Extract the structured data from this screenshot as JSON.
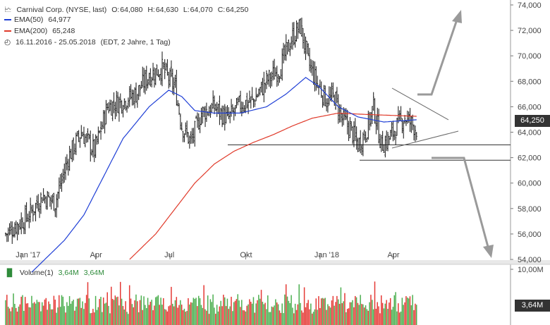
{
  "header": {
    "icon": "candlestick-chart-icon",
    "instrument": "Carnival Corp. (NYSE, last)",
    "open_label": "O:",
    "open": "64,080",
    "high_label": "H:",
    "high": "64,630",
    "low_label": "L:",
    "low": "64,070",
    "close_label": "C:",
    "close": "64,250",
    "ema50_label": "EMA(50)",
    "ema50_value": "64,977",
    "ema50_color": "#1f3fd6",
    "ema200_label": "EMA(200)",
    "ema200_value": "65,248",
    "ema200_color": "#e03a2a",
    "range_icon": "clock-icon",
    "range": "16.11.2016 - 25.05.2018",
    "range_detail": "(EDT, 2 Jahre, 1 Tag)"
  },
  "volume_header": {
    "icon": "bar-chart-icon",
    "label": "Volume(1)",
    "value1": "3,64M",
    "value2": "3,64M",
    "color": "#2e8b3a"
  },
  "chart_data": {
    "type": "candlestick",
    "x_tick_labels": [
      "Jan '17",
      "Apr",
      "Jul",
      "Okt",
      "Jan '18",
      "Apr"
    ],
    "y_tick_labels": [
      "74,000",
      "72,000",
      "70,000",
      "68,000",
      "66,000",
      "64,000",
      "62,000",
      "60,000",
      "58,000",
      "56,000",
      "54,000"
    ],
    "ylim": [
      54,
      74
    ],
    "last_value_label": "64,250",
    "last_value": 64.25,
    "price_keypoints": [
      [
        0,
        56.0
      ],
      [
        18,
        57.5
      ],
      [
        28,
        59.0
      ],
      [
        38,
        58.5
      ],
      [
        48,
        62.0
      ],
      [
        58,
        64.0
      ],
      [
        68,
        62.5
      ],
      [
        78,
        66.0
      ],
      [
        90,
        66.5
      ],
      [
        100,
        67.0
      ],
      [
        110,
        68.5
      ],
      [
        120,
        69.0
      ],
      [
        130,
        67.5
      ],
      [
        135,
        64.5
      ],
      [
        142,
        63.2
      ],
      [
        150,
        65.5
      ],
      [
        160,
        66.0
      ],
      [
        170,
        65.0
      ],
      [
        180,
        66.2
      ],
      [
        190,
        66.5
      ],
      [
        200,
        68.0
      ],
      [
        210,
        69.0
      ],
      [
        220,
        71.5
      ],
      [
        226,
        72.3
      ],
      [
        232,
        69.5
      ],
      [
        238,
        68.0
      ],
      [
        246,
        66.5
      ],
      [
        252,
        66.8
      ],
      [
        258,
        65.0
      ],
      [
        264,
        64.3
      ],
      [
        270,
        63.0
      ],
      [
        276,
        64.0
      ],
      [
        282,
        66.0
      ],
      [
        288,
        63.0
      ],
      [
        294,
        63.5
      ],
      [
        300,
        64.5
      ],
      [
        306,
        65.2
      ],
      [
        312,
        64.6
      ],
      [
        315,
        64.25
      ]
    ],
    "ema50_keypoints": [
      [
        20,
        53.0
      ],
      [
        45,
        55.5
      ],
      [
        60,
        57.5
      ],
      [
        75,
        60.5
      ],
      [
        90,
        63.5
      ],
      [
        110,
        66.0
      ],
      [
        125,
        67.3
      ],
      [
        135,
        66.8
      ],
      [
        145,
        65.7
      ],
      [
        160,
        65.5
      ],
      [
        180,
        65.5
      ],
      [
        200,
        66.0
      ],
      [
        215,
        67.0
      ],
      [
        230,
        68.3
      ],
      [
        240,
        67.6
      ],
      [
        255,
        66.0
      ],
      [
        270,
        65.2
      ],
      [
        290,
        64.8
      ],
      [
        315,
        64.977
      ]
    ],
    "ema200_keypoints": [
      [
        95,
        54.0
      ],
      [
        115,
        56.0
      ],
      [
        130,
        58.0
      ],
      [
        145,
        60.0
      ],
      [
        160,
        61.5
      ],
      [
        175,
        62.5
      ],
      [
        190,
        63.2
      ],
      [
        205,
        63.8
      ],
      [
        220,
        64.5
      ],
      [
        235,
        65.1
      ],
      [
        255,
        65.5
      ],
      [
        275,
        65.4
      ],
      [
        315,
        65.248
      ]
    ],
    "support_levels": [
      63.0,
      61.8
    ],
    "volume": {
      "ylim_label": "10,00M",
      "last_label": "3,64M",
      "last_value": 3.64,
      "max": 10.0
    }
  }
}
